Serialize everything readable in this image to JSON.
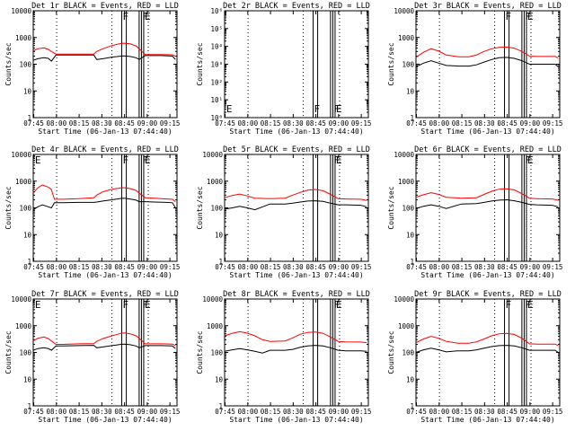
{
  "colors": {
    "events": "#000000",
    "lld": "#ff0000",
    "frame": "#000000",
    "background": "#ffffff"
  },
  "common": {
    "xlabel": "Start Time (06-Jan-13 07:44:40)",
    "ylabel": "Counts/sec",
    "xticks": [
      "07:45",
      "08:00",
      "08:15",
      "08:30",
      "08:45",
      "09:00",
      "09:15"
    ],
    "xtick_minutes": [
      0.33,
      15.33,
      30.33,
      45.33,
      60.33,
      75.33,
      90.33
    ],
    "xrange_minutes": [
      0,
      95
    ],
    "dotted_minutes": [
      15.5,
      52,
      76
    ],
    "solid_minutes": [
      58.5,
      61.5,
      70,
      71.5,
      73
    ]
  },
  "chart_data": [
    {
      "id": "det1r",
      "title": "Det 1r BLACK = Events, RED = LLD",
      "type": "line",
      "yscale": "log",
      "ylim": [
        1,
        10000
      ],
      "yticks": [
        "1",
        "10",
        "100",
        "1000",
        "10000"
      ],
      "show_red": true,
      "flags": [
        {
          "label": "F",
          "minute": 58.5
        },
        {
          "label": "F",
          "minute": 71.5
        },
        {
          "label": "E",
          "minute": 73
        }
      ],
      "flags_row": "top",
      "events": {
        "x": [
          0,
          3,
          7,
          10,
          12,
          15,
          20,
          30,
          40,
          42,
          46,
          52,
          58,
          60,
          64,
          68,
          70,
          74,
          78,
          85,
          92,
          94
        ],
        "y": [
          140,
          160,
          175,
          165,
          130,
          220,
          220,
          220,
          220,
          150,
          160,
          185,
          200,
          205,
          195,
          175,
          150,
          210,
          210,
          210,
          200,
          150
        ]
      },
      "lld": {
        "x": [
          0,
          3,
          7,
          10,
          12,
          15,
          20,
          30,
          40,
          42,
          46,
          52,
          58,
          60,
          64,
          68,
          70,
          74,
          78,
          85,
          92,
          94
        ],
        "y": [
          320,
          380,
          410,
          360,
          300,
          240,
          240,
          240,
          240,
          300,
          380,
          500,
          600,
          610,
          580,
          480,
          380,
          230,
          230,
          230,
          225,
          200
        ]
      }
    },
    {
      "id": "det2r",
      "title": "Det 2r BLACK = Events, RED = LLD",
      "type": "line",
      "yscale": "log",
      "ylim": [
        1,
        1000000
      ],
      "yticks": [
        "10⁰",
        "10¹",
        "10²",
        "10³",
        "10⁴",
        "10⁵",
        "10⁶"
      ],
      "show_red": false,
      "flags": [
        {
          "label": "E",
          "minute": 0.5
        },
        {
          "label": "F",
          "minute": 58.5
        },
        {
          "label": "F",
          "minute": 71.5
        },
        {
          "label": "E",
          "minute": 73
        }
      ],
      "flags_row": "bottom",
      "events": {
        "x": [],
        "y": []
      },
      "lld": {
        "x": [],
        "y": []
      }
    },
    {
      "id": "det3r",
      "title": "Det 3r BLACK = Events, RED = LLD",
      "type": "line",
      "yscale": "log",
      "ylim": [
        1,
        10000
      ],
      "yticks": [
        "1",
        "10",
        "100",
        "1000",
        "10000"
      ],
      "show_red": true,
      "flags": [
        {
          "label": "F",
          "minute": 58.5
        },
        {
          "label": "F",
          "minute": 71.5
        },
        {
          "label": "E",
          "minute": 73
        }
      ],
      "flags_row": "top",
      "events": {
        "x": [
          0,
          5,
          10,
          15,
          20,
          28,
          35,
          40,
          45,
          50,
          55,
          60,
          65,
          70,
          75,
          80,
          85,
          92,
          94
        ],
        "y": [
          80,
          110,
          135,
          110,
          90,
          85,
          85,
          95,
          120,
          150,
          175,
          180,
          165,
          135,
          100,
          100,
          100,
          100,
          80
        ]
      },
      "lld": {
        "x": [
          0,
          5,
          10,
          15,
          20,
          28,
          35,
          40,
          45,
          50,
          55,
          60,
          65,
          70,
          75,
          80,
          85,
          92,
          94
        ],
        "y": [
          180,
          280,
          380,
          310,
          220,
          190,
          190,
          220,
          300,
          380,
          430,
          440,
          400,
          300,
          200,
          195,
          195,
          195,
          170
        ]
      }
    },
    {
      "id": "det4r",
      "title": "Det 4r BLACK = Events, RED = LLD",
      "type": "line",
      "yscale": "log",
      "ylim": [
        1,
        10000
      ],
      "yticks": [
        "1",
        "10",
        "100",
        "1000",
        "10000"
      ],
      "show_red": true,
      "flags": [
        {
          "label": "E",
          "minute": 0.5
        },
        {
          "label": "F",
          "minute": 58.5
        },
        {
          "label": "F",
          "minute": 71.5
        },
        {
          "label": "E",
          "minute": 73
        }
      ],
      "flags_row": "top",
      "events": {
        "x": [
          0,
          3,
          6,
          10,
          12,
          14,
          20,
          30,
          40,
          42,
          46,
          52,
          58,
          60,
          64,
          68,
          70,
          74,
          80,
          88,
          92,
          94
        ],
        "y": [
          85,
          110,
          130,
          110,
          100,
          155,
          155,
          160,
          160,
          165,
          180,
          200,
          225,
          230,
          215,
          195,
          170,
          170,
          165,
          160,
          155,
          100
        ]
      },
      "lld": {
        "x": [
          0,
          3,
          6,
          10,
          12,
          14,
          20,
          30,
          40,
          42,
          46,
          52,
          58,
          60,
          64,
          68,
          70,
          74,
          80,
          88,
          92,
          94
        ],
        "y": [
          360,
          560,
          720,
          600,
          480,
          210,
          210,
          220,
          240,
          300,
          400,
          500,
          560,
          570,
          530,
          450,
          360,
          240,
          230,
          215,
          210,
          170
        ]
      }
    },
    {
      "id": "det5r",
      "title": "Det 5r BLACK = Events, RED = LLD",
      "type": "line",
      "yscale": "log",
      "ylim": [
        1,
        10000
      ],
      "yticks": [
        "1",
        "10",
        "100",
        "1000",
        "10000"
      ],
      "show_red": true,
      "flags": [
        {
          "label": "F",
          "minute": 71.5
        },
        {
          "label": "E",
          "minute": 73
        }
      ],
      "flags_row": "top",
      "events": {
        "x": [
          0,
          5,
          10,
          15,
          20,
          30,
          40,
          45,
          50,
          55,
          60,
          65,
          70,
          75,
          80,
          90,
          94
        ],
        "y": [
          90,
          100,
          115,
          100,
          85,
          140,
          140,
          150,
          165,
          180,
          185,
          175,
          150,
          130,
          130,
          125,
          110
        ]
      },
      "lld": {
        "x": [
          0,
          5,
          10,
          15,
          20,
          30,
          40,
          45,
          50,
          55,
          60,
          65,
          70,
          75,
          80,
          90,
          94
        ],
        "y": [
          240,
          290,
          330,
          280,
          230,
          220,
          230,
          300,
          380,
          460,
          490,
          440,
          320,
          220,
          215,
          210,
          190
        ]
      }
    },
    {
      "id": "det6r",
      "title": "Det 6r BLACK = Events, RED = LLD",
      "type": "line",
      "yscale": "log",
      "ylim": [
        1,
        10000
      ],
      "yticks": [
        "1",
        "10",
        "100",
        "1000",
        "10000"
      ],
      "show_red": true,
      "flags": [
        {
          "label": "F",
          "minute": 71.5
        },
        {
          "label": "E",
          "minute": 73
        }
      ],
      "flags_row": "top",
      "events": {
        "x": [
          0,
          5,
          10,
          15,
          20,
          30,
          40,
          45,
          50,
          55,
          60,
          65,
          70,
          75,
          80,
          90,
          94
        ],
        "y": [
          95,
          115,
          130,
          115,
          95,
          140,
          145,
          160,
          180,
          195,
          200,
          185,
          160,
          135,
          130,
          125,
          110
        ]
      },
      "lld": {
        "x": [
          0,
          5,
          10,
          15,
          20,
          30,
          40,
          45,
          50,
          55,
          60,
          65,
          70,
          75,
          80,
          90,
          94
        ],
        "y": [
          250,
          310,
          370,
          320,
          250,
          230,
          240,
          320,
          420,
          500,
          520,
          470,
          340,
          230,
          220,
          215,
          195
        ]
      }
    },
    {
      "id": "det7r",
      "title": "Det 7r BLACK = Events, RED = LLD",
      "type": "line",
      "yscale": "log",
      "ylim": [
        1,
        10000
      ],
      "yticks": [
        "1",
        "10",
        "100",
        "1000",
        "10000"
      ],
      "show_red": true,
      "flags": [
        {
          "label": "E",
          "minute": 0.5
        },
        {
          "label": "F",
          "minute": 58.5
        },
        {
          "label": "F",
          "minute": 71.5
        },
        {
          "label": "E",
          "minute": 73
        }
      ],
      "flags_row": "top",
      "events": {
        "x": [
          0,
          3,
          7,
          10,
          12,
          15,
          20,
          30,
          40,
          42,
          46,
          52,
          58,
          60,
          64,
          68,
          70,
          74,
          78,
          85,
          92,
          94
        ],
        "y": [
          120,
          140,
          150,
          140,
          120,
          175,
          175,
          180,
          185,
          150,
          160,
          180,
          200,
          205,
          195,
          175,
          150,
          180,
          180,
          180,
          175,
          140
        ]
      },
      "lld": {
        "x": [
          0,
          3,
          7,
          10,
          12,
          15,
          20,
          30,
          40,
          42,
          46,
          52,
          58,
          60,
          64,
          68,
          70,
          74,
          78,
          85,
          92,
          94
        ],
        "y": [
          270,
          340,
          380,
          330,
          270,
          200,
          200,
          210,
          215,
          260,
          330,
          420,
          520,
          540,
          500,
          420,
          340,
          210,
          210,
          210,
          205,
          180
        ]
      }
    },
    {
      "id": "det8r",
      "title": "Det 8r BLACK = Events, RED = LLD",
      "type": "line",
      "yscale": "log",
      "ylim": [
        1,
        10000
      ],
      "yticks": [
        "1",
        "10",
        "100",
        "1000",
        "10000"
      ],
      "show_red": true,
      "flags": [
        {
          "label": "F",
          "minute": 71.5
        },
        {
          "label": "E",
          "minute": 73
        }
      ],
      "flags_row": "top",
      "events": {
        "x": [
          0,
          5,
          10,
          15,
          20,
          25,
          30,
          40,
          45,
          50,
          55,
          60,
          65,
          70,
          75,
          80,
          90,
          94
        ],
        "y": [
          110,
          125,
          140,
          125,
          110,
          95,
          120,
          120,
          130,
          155,
          175,
          185,
          175,
          150,
          120,
          115,
          115,
          110
        ]
      },
      "lld": {
        "x": [
          0,
          5,
          10,
          15,
          20,
          25,
          30,
          40,
          45,
          50,
          55,
          60,
          65,
          70,
          75,
          80,
          90,
          94
        ],
        "y": [
          420,
          520,
          600,
          530,
          420,
          300,
          260,
          270,
          350,
          480,
          560,
          580,
          520,
          380,
          260,
          250,
          245,
          230
        ]
      }
    },
    {
      "id": "det9r",
      "title": "Det 9r BLACK = Events, RED = LLD",
      "type": "line",
      "yscale": "log",
      "ylim": [
        1,
        10000
      ],
      "yticks": [
        "1",
        "10",
        "100",
        "1000",
        "10000"
      ],
      "show_red": true,
      "flags": [
        {
          "label": "F",
          "minute": 58.5
        },
        {
          "label": "F",
          "minute": 71.5
        },
        {
          "label": "E",
          "minute": 73
        }
      ],
      "flags_row": "top",
      "events": {
        "x": [
          0,
          5,
          10,
          15,
          20,
          28,
          35,
          40,
          45,
          50,
          55,
          60,
          65,
          70,
          75,
          80,
          85,
          92,
          94
        ],
        "y": [
          100,
          125,
          145,
          125,
          105,
          115,
          115,
          125,
          145,
          165,
          180,
          185,
          175,
          150,
          120,
          120,
          120,
          120,
          100
        ]
      },
      "lld": {
        "x": [
          0,
          5,
          10,
          15,
          20,
          28,
          35,
          40,
          45,
          50,
          55,
          60,
          65,
          70,
          75,
          80,
          85,
          92,
          94
        ],
        "y": [
          230,
          320,
          400,
          340,
          260,
          220,
          220,
          250,
          320,
          420,
          500,
          520,
          470,
          340,
          210,
          205,
          205,
          205,
          180
        ]
      }
    }
  ]
}
